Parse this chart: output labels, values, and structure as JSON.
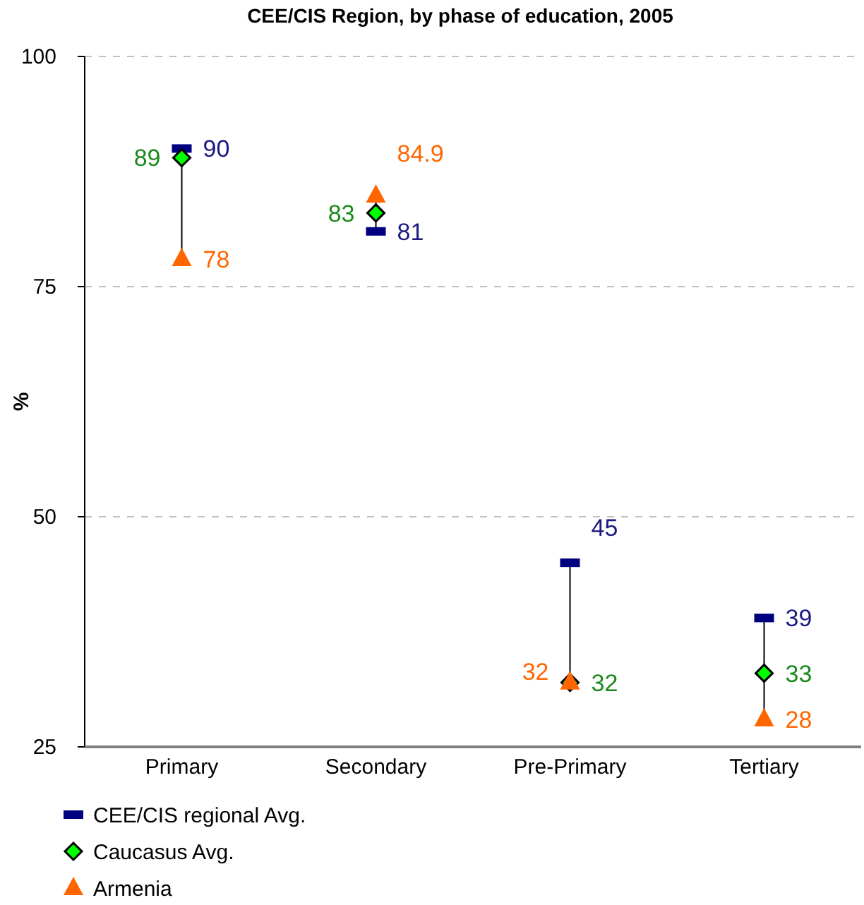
{
  "chart_data": {
    "type": "scatter",
    "title": "CEE/CIS Region, by phase of education, 2005",
    "ylabel": "%",
    "categories": [
      "Primary",
      "Secondary",
      "Pre-Primary",
      "Tertiary"
    ],
    "series": [
      {
        "name": "CEE/CIS regional Avg.",
        "color": "#000080",
        "marker": "square",
        "values": [
          90,
          81,
          45,
          39
        ]
      },
      {
        "name": "Caucasus Avg.",
        "color": "#00ff00",
        "marker": "diamond",
        "values": [
          89,
          83,
          32,
          33
        ]
      },
      {
        "name": "Armenia",
        "color": "#ff6600",
        "marker": "triangle",
        "values": [
          78,
          84.9,
          32,
          28
        ]
      }
    ],
    "ylim": [
      25,
      100
    ],
    "yticks": [
      25,
      50,
      75,
      100
    ],
    "grid": "y",
    "legend": "bottom",
    "data_labels": true
  }
}
